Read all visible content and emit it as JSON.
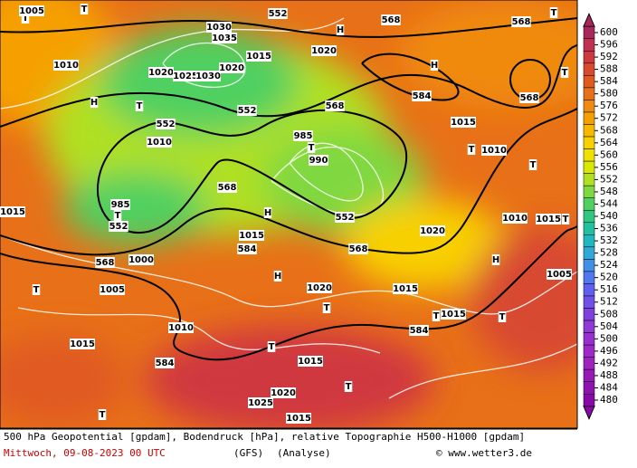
{
  "colorbar": {
    "ticks": [
      600,
      596,
      592,
      588,
      584,
      580,
      576,
      572,
      568,
      564,
      560,
      556,
      552,
      548,
      544,
      540,
      536,
      532,
      528,
      524,
      520,
      516,
      512,
      508,
      504,
      500,
      496,
      492,
      488,
      484,
      480
    ],
    "colors": [
      "#a8285c",
      "#c03050",
      "#d03840",
      "#d84a30",
      "#e05a20",
      "#e87018",
      "#f08a10",
      "#f5a000",
      "#f8b800",
      "#f8d000",
      "#f0e000",
      "#d8e800",
      "#b0e020",
      "#80d840",
      "#50d060",
      "#30c880",
      "#20c0a0",
      "#20b8c0",
      "#30a8d8",
      "#4090e8",
      "#5078f0",
      "#6060f0",
      "#7050e8",
      "#8040e0",
      "#9038d8",
      "#9830d0",
      "#a028c8",
      "#a020c0",
      "#9818b8",
      "#9010b0",
      "#8808a8"
    ]
  },
  "map_labels": [
    "T",
    "1005",
    "T",
    "1030",
    "1035",
    "552",
    "568",
    "568",
    "T",
    "H",
    "1010",
    "1020",
    "1025",
    "1030",
    "1020",
    "1015",
    "1020",
    "H",
    "T",
    "568",
    "H",
    "T",
    "552",
    "552",
    "568",
    "584",
    "1015",
    "1010",
    "985",
    "T",
    "990",
    "T",
    "1010",
    "T",
    "568",
    "552",
    "985",
    "T",
    "552",
    "1015",
    "H",
    "584",
    "1015",
    "568",
    "1020",
    "1010",
    "1015",
    "T",
    "568",
    "1000",
    "H",
    "T",
    "1005",
    "H",
    "1020",
    "T",
    "1015",
    "584",
    "T",
    "1015",
    "1010",
    "1015",
    "T",
    "584",
    "1015",
    "T",
    "1025",
    "1020",
    "T",
    "1015",
    "T",
    "1005"
  ],
  "footer": {
    "description": "500 hPa Geopotential [gpdam], Bodendruck [hPa], relative Topographie H500-H1000 [gpdam]",
    "date": "Mittwoch, 09-08-2023  00 UTC",
    "model": "(GFS)",
    "run": "(Analyse)",
    "copyright": "© www.wetter3.de"
  }
}
